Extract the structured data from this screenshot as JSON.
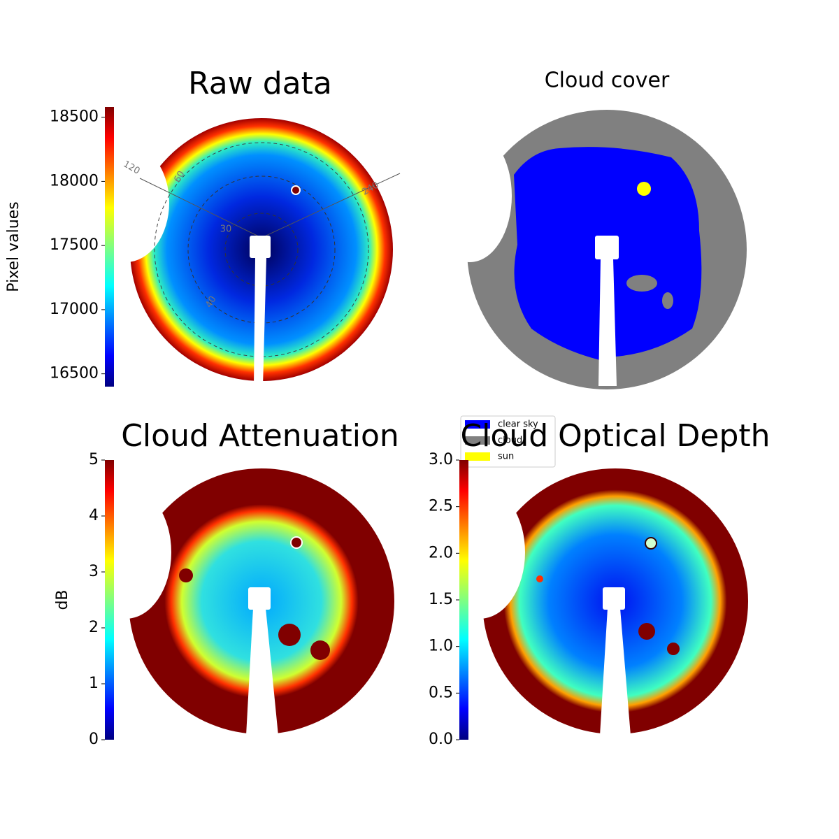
{
  "chart_data": [
    {
      "type": "image",
      "title": "Raw data",
      "polar_labels": [
        "120",
        "60",
        "240",
        "30",
        "40"
      ],
      "colorbar": {
        "label": "Pixel values",
        "colormap": "jet",
        "lim": [
          16400,
          18580
        ],
        "ticks": [
          16500,
          17000,
          17500,
          18000,
          18500
        ]
      }
    },
    {
      "type": "image",
      "title": "Cloud cover",
      "legend": [
        {
          "name": "clear sky",
          "color": "#0000ff"
        },
        {
          "name": "cloud",
          "color": "#808080"
        },
        {
          "name": "sun",
          "color": "#ffff00"
        }
      ]
    },
    {
      "type": "image",
      "title": "Cloud Attenuation",
      "colorbar": {
        "label": "dB",
        "colormap": "jet",
        "lim": [
          0,
          5
        ],
        "ticks": [
          0,
          1,
          2,
          3,
          4,
          5
        ]
      }
    },
    {
      "type": "image",
      "title": "Cloud Optical Depth",
      "colorbar": {
        "colormap": "jet",
        "lim": [
          0,
          3
        ],
        "ticks": [
          {
            "value": 0,
            "label": "0.0"
          },
          {
            "value": 0.5,
            "label": "0.5"
          },
          {
            "value": 1,
            "label": "1.0"
          },
          {
            "value": 1.5,
            "label": "1.5"
          },
          {
            "value": 2,
            "label": "2.0"
          },
          {
            "value": 2.5,
            "label": "2.5"
          },
          {
            "value": 3,
            "label": "3.0"
          }
        ]
      }
    }
  ]
}
